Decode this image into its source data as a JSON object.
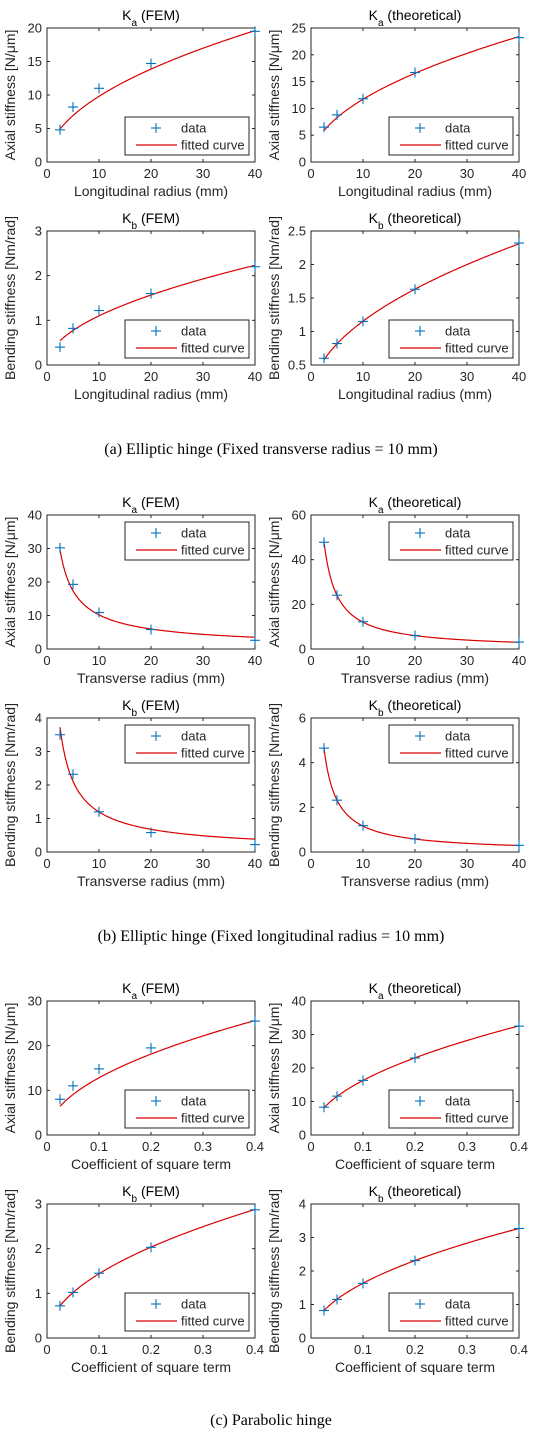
{
  "captions": [
    "(a) Elliptic hinge (Fixed transverse radius = 10 mm)",
    "(b) Elliptic hinge (Fixed longitudinal radius = 10 mm)",
    "(c) Parabolic hinge"
  ],
  "legend": {
    "data_label": "data",
    "fit_label": "fitted curve"
  },
  "colors": {
    "data": "#0072BD",
    "fit": "#D90000",
    "axis": "#262626",
    "legend_border": "#262626"
  },
  "chart_data": [
    {
      "type": "scatter",
      "title": "K_a (FEM)",
      "title_main": "K",
      "title_sub": "a",
      "title_rest": " (FEM)",
      "xlabel": "Longitudinal radius (mm)",
      "ylabel": "Axial stiffness [N/μm]",
      "xlim": [
        0,
        40
      ],
      "ylim": [
        0,
        20
      ],
      "xticks": [
        0,
        10,
        20,
        30,
        40
      ],
      "yticks": [
        0,
        5,
        10,
        15,
        20
      ],
      "xtick_labels": [
        "0",
        "10",
        "20",
        "30",
        "40"
      ],
      "ytick_labels": [
        "0",
        "5",
        "10",
        "15",
        "20"
      ],
      "x": [
        2.5,
        5,
        10,
        20,
        40
      ],
      "y": [
        4.8,
        8.2,
        11,
        14.7,
        19.5
      ],
      "fit": {
        "a": 3.1,
        "b": 0.5
      },
      "legend_position": "bottom-right",
      "series": [
        {
          "name": "data"
        },
        {
          "name": "fitted curve"
        }
      ]
    },
    {
      "type": "scatter",
      "title": "K_a (theoretical)",
      "title_main": "K",
      "title_sub": "a",
      "title_rest": " (theoretical)",
      "xlabel": "Longitudinal radius (mm)",
      "ylabel": "Axial stiffness [N/μm]",
      "xlim": [
        0,
        40
      ],
      "ylim": [
        0,
        25
      ],
      "xticks": [
        0,
        10,
        20,
        30,
        40
      ],
      "yticks": [
        0,
        5,
        10,
        15,
        20,
        25
      ],
      "xtick_labels": [
        "0",
        "10",
        "20",
        "30",
        "40"
      ],
      "ytick_labels": [
        "0",
        "5",
        "10",
        "15",
        "20",
        "25"
      ],
      "x": [
        2.5,
        5,
        10,
        20,
        40
      ],
      "y": [
        6.5,
        8.8,
        11.8,
        16.7,
        23.2
      ],
      "fit": {
        "a": 3.7,
        "b": 0.5
      },
      "legend_position": "bottom-right",
      "series": [
        {
          "name": "data"
        },
        {
          "name": "fitted curve"
        }
      ]
    },
    {
      "type": "scatter",
      "title": "K_b (FEM)",
      "title_main": "K",
      "title_sub": "b",
      "title_rest": " (FEM)",
      "xlabel": "Longitudinal radius (mm)",
      "ylabel": "Bending stiffness [Nm/rad]",
      "xlim": [
        0,
        40
      ],
      "ylim": [
        0,
        3
      ],
      "xticks": [
        0,
        10,
        20,
        30,
        40
      ],
      "yticks": [
        0,
        1,
        2,
        3
      ],
      "xtick_labels": [
        "0",
        "10",
        "20",
        "30",
        "40"
      ],
      "ytick_labels": [
        "0",
        "1",
        "2",
        "3"
      ],
      "x": [
        2.5,
        5,
        10,
        20,
        40
      ],
      "y": [
        0.4,
        0.82,
        1.22,
        1.6,
        2.2
      ],
      "fit": {
        "a": 0.34,
        "b": 0.51
      },
      "legend_position": "bottom-right",
      "series": [
        {
          "name": "data"
        },
        {
          "name": "fitted curve"
        }
      ]
    },
    {
      "type": "scatter",
      "title": "K_b (theoretical)",
      "title_main": "K",
      "title_sub": "b",
      "title_rest": " (theoretical)",
      "xlabel": "Longitudinal radius (mm)",
      "ylabel": "Bending stiffness [Nm/rad]",
      "xlim": [
        0,
        40
      ],
      "ylim": [
        0.5,
        2.5
      ],
      "xticks": [
        0,
        10,
        20,
        30,
        40
      ],
      "yticks": [
        0.5,
        1,
        1.5,
        2,
        2.5
      ],
      "xtick_labels": [
        "0",
        "10",
        "20",
        "30",
        "40"
      ],
      "ytick_labels": [
        "0.5",
        "1",
        "1.5",
        "2",
        "2.5"
      ],
      "x": [
        2.5,
        5,
        10,
        20,
        40
      ],
      "y": [
        0.6,
        0.82,
        1.15,
        1.63,
        2.32
      ],
      "fit": {
        "a": 0.365,
        "b": 0.5
      },
      "legend_position": "bottom-right",
      "series": [
        {
          "name": "data"
        },
        {
          "name": "fitted curve"
        }
      ]
    },
    {
      "type": "scatter",
      "title": "K_a (FEM)",
      "title_main": "K",
      "title_sub": "a",
      "title_rest": " (FEM)",
      "xlabel": "Transverse radius (mm)",
      "ylabel": "Axial stiffness [N/μm]",
      "xlim": [
        0,
        40
      ],
      "ylim": [
        0,
        40
      ],
      "xticks": [
        0,
        10,
        20,
        30,
        40
      ],
      "yticks": [
        0,
        10,
        20,
        30,
        40
      ],
      "xtick_labels": [
        "0",
        "10",
        "20",
        "30",
        "40"
      ],
      "ytick_labels": [
        "0",
        "10",
        "20",
        "30",
        "40"
      ],
      "x": [
        2.5,
        5,
        10,
        20,
        40
      ],
      "y": [
        30.2,
        19.3,
        10.9,
        5.8,
        2.6
      ],
      "fit": {
        "a": 60,
        "b": -0.77
      },
      "legend_position": "top-right",
      "series": [
        {
          "name": "data"
        },
        {
          "name": "fitted curve"
        }
      ]
    },
    {
      "type": "scatter",
      "title": "K_a (theoretical)",
      "title_main": "K",
      "title_sub": "a",
      "title_rest": " (theoretical)",
      "xlabel": "Transverse radius (mm)",
      "ylabel": "Axial stiffness [N/μm]",
      "xlim": [
        0,
        40
      ],
      "ylim": [
        0,
        60
      ],
      "xticks": [
        0,
        10,
        20,
        30,
        40
      ],
      "yticks": [
        0,
        20,
        40,
        60
      ],
      "xtick_labels": [
        "0",
        "10",
        "20",
        "30",
        "40"
      ],
      "ytick_labels": [
        "0",
        "20",
        "40",
        "60"
      ],
      "x": [
        2.5,
        5,
        10,
        20,
        40
      ],
      "y": [
        47.8,
        24.1,
        12.2,
        6,
        3.1
      ],
      "fit": {
        "a": 120,
        "b": -1
      },
      "legend_position": "top-right",
      "series": [
        {
          "name": "data"
        },
        {
          "name": "fitted curve"
        }
      ]
    },
    {
      "type": "scatter",
      "title": "K_b (FEM)",
      "title_main": "K",
      "title_sub": "b",
      "title_rest": " (FEM)",
      "xlabel": "Transverse radius (mm)",
      "ylabel": "Bending stiffness [Nm/rad]",
      "xlim": [
        0,
        40
      ],
      "ylim": [
        0,
        4
      ],
      "xticks": [
        0,
        10,
        20,
        30,
        40
      ],
      "yticks": [
        0,
        1,
        2,
        3,
        4
      ],
      "xtick_labels": [
        "0",
        "10",
        "20",
        "30",
        "40"
      ],
      "ytick_labels": [
        "0",
        "1",
        "2",
        "3",
        "4"
      ],
      "x": [
        2.5,
        5,
        10,
        20,
        40
      ],
      "y": [
        3.5,
        2.32,
        1.2,
        0.58,
        0.22
      ],
      "fit": {
        "a": 7.9,
        "b": -0.82
      },
      "legend_position": "top-right",
      "series": [
        {
          "name": "data"
        },
        {
          "name": "fitted curve"
        }
      ]
    },
    {
      "type": "scatter",
      "title": "K_b (theoretical)",
      "title_main": "K",
      "title_sub": "b",
      "title_rest": " (theoretical)",
      "xlabel": "Transverse radius (mm)",
      "ylabel": "Bending stiffness [Nm/rad]",
      "xlim": [
        0,
        40
      ],
      "ylim": [
        0,
        6
      ],
      "xticks": [
        0,
        10,
        20,
        30,
        40
      ],
      "yticks": [
        0,
        2,
        4,
        6
      ],
      "xtick_labels": [
        "0",
        "10",
        "20",
        "30",
        "40"
      ],
      "ytick_labels": [
        "0",
        "2",
        "4",
        "6"
      ],
      "x": [
        2.5,
        5,
        10,
        20,
        40
      ],
      "y": [
        4.65,
        2.32,
        1.18,
        0.59,
        0.3
      ],
      "fit": {
        "a": 11.6,
        "b": -1
      },
      "legend_position": "top-right",
      "series": [
        {
          "name": "data"
        },
        {
          "name": "fitted curve"
        }
      ]
    },
    {
      "type": "scatter",
      "title": "K_a (FEM)",
      "title_main": "K",
      "title_sub": "a",
      "title_rest": " (FEM)",
      "xlabel": "Coefficient of square term",
      "ylabel": "Axial stiffness [N/μm]",
      "xlim": [
        0,
        0.4
      ],
      "ylim": [
        0,
        30
      ],
      "xticks": [
        0,
        0.1,
        0.2,
        0.3,
        0.4
      ],
      "yticks": [
        0,
        10,
        20,
        30
      ],
      "xtick_labels": [
        "0",
        "0.1",
        "0.2",
        "0.3",
        "0.4"
      ],
      "ytick_labels": [
        "0",
        "10",
        "20",
        "30"
      ],
      "x": [
        0.025,
        0.05,
        0.1,
        0.2,
        0.4
      ],
      "y": [
        8,
        11,
        14.8,
        19.5,
        25.5
      ],
      "fit": {
        "a": 40.5,
        "b": 0.5
      },
      "legend_position": "bottom-right",
      "series": [
        {
          "name": "data"
        },
        {
          "name": "fitted curve"
        }
      ]
    },
    {
      "type": "scatter",
      "title": "K_a (theoretical)",
      "title_main": "K",
      "title_sub": "a",
      "title_rest": " (theoretical)",
      "xlabel": "Coefficient of square term",
      "ylabel": "Axial stiffness [N/μm]",
      "xlim": [
        0,
        0.4
      ],
      "ylim": [
        0,
        40
      ],
      "xticks": [
        0,
        0.1,
        0.2,
        0.3,
        0.4
      ],
      "yticks": [
        0,
        10,
        20,
        30,
        40
      ],
      "xtick_labels": [
        "0",
        "0.1",
        "0.2",
        "0.3",
        "0.4"
      ],
      "ytick_labels": [
        "0",
        "10",
        "20",
        "30",
        "40"
      ],
      "x": [
        0.025,
        0.05,
        0.1,
        0.2,
        0.4
      ],
      "y": [
        8.3,
        11.6,
        16.3,
        23,
        32.5
      ],
      "fit": {
        "a": 51.5,
        "b": 0.5
      },
      "legend_position": "bottom-right",
      "series": [
        {
          "name": "data"
        },
        {
          "name": "fitted curve"
        }
      ]
    },
    {
      "type": "scatter",
      "title": "K_b (FEM)",
      "title_main": "K",
      "title_sub": "b",
      "title_rest": " (FEM)",
      "xlabel": "Coefficient of square term",
      "ylabel": "Bending stiffness [Nm/rad]",
      "xlim": [
        0,
        0.4
      ],
      "ylim": [
        0,
        3
      ],
      "xticks": [
        0,
        0.1,
        0.2,
        0.3,
        0.4
      ],
      "yticks": [
        0,
        1,
        2,
        3
      ],
      "xtick_labels": [
        "0",
        "0.1",
        "0.2",
        "0.3",
        "0.4"
      ],
      "ytick_labels": [
        "0",
        "1",
        "2",
        "3"
      ],
      "x": [
        0.025,
        0.05,
        0.1,
        0.2,
        0.4
      ],
      "y": [
        0.72,
        1.02,
        1.45,
        2.03,
        2.87
      ],
      "fit": {
        "a": 4.55,
        "b": 0.5
      },
      "legend_position": "bottom-right",
      "series": [
        {
          "name": "data"
        },
        {
          "name": "fitted curve"
        }
      ]
    },
    {
      "type": "scatter",
      "title": "K_b (theoretical)",
      "title_main": "K",
      "title_sub": "b",
      "title_rest": " (theoretical)",
      "xlabel": "Coefficient of square term",
      "ylabel": "Bending stiffness [Nm/rad]",
      "xlim": [
        0,
        0.4
      ],
      "ylim": [
        0,
        4
      ],
      "xticks": [
        0,
        0.1,
        0.2,
        0.3,
        0.4
      ],
      "yticks": [
        0,
        1,
        2,
        3,
        4
      ],
      "xtick_labels": [
        "0",
        "0.1",
        "0.2",
        "0.3",
        "0.4"
      ],
      "ytick_labels": [
        "0",
        "1",
        "2",
        "3",
        "4"
      ],
      "x": [
        0.025,
        0.05,
        0.1,
        0.2,
        0.4
      ],
      "y": [
        0.82,
        1.15,
        1.63,
        2.31,
        3.27
      ],
      "fit": {
        "a": 5.17,
        "b": 0.5
      },
      "legend_position": "bottom-right",
      "series": [
        {
          "name": "data"
        },
        {
          "name": "fitted curve"
        }
      ]
    }
  ]
}
